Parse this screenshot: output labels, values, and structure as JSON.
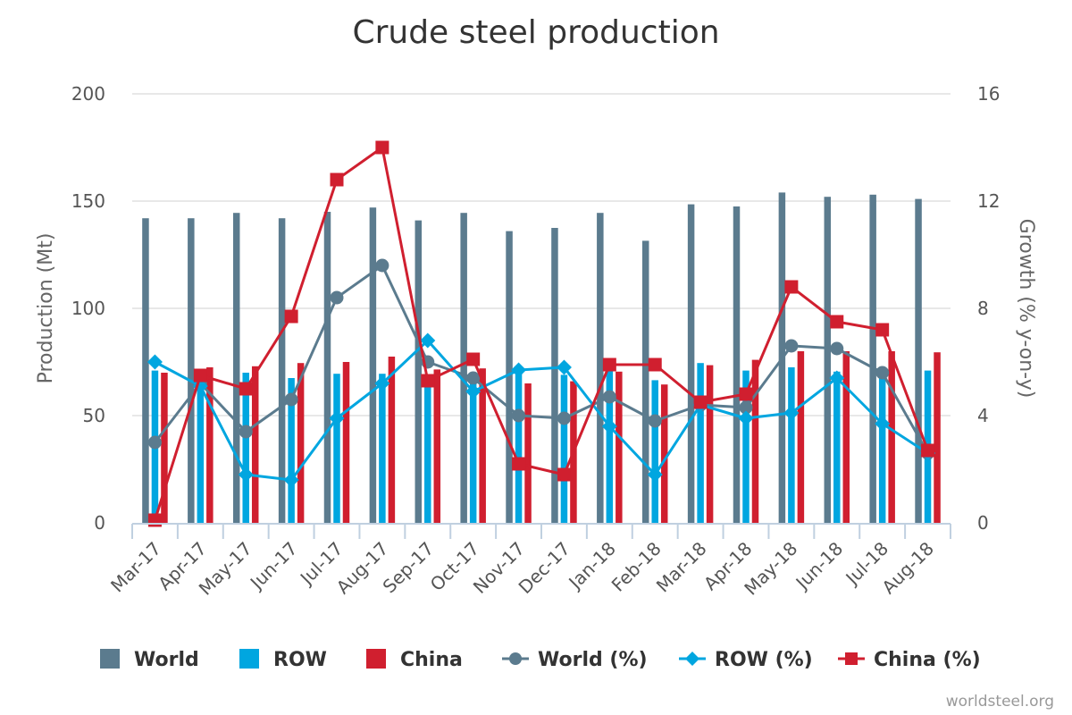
{
  "chart_data": {
    "type": "bar",
    "title": "Crude steel production",
    "categories": [
      "Mar-17",
      "Apr-17",
      "May-17",
      "Jun-17",
      "Jul-17",
      "Aug-17",
      "Sep-17",
      "Oct-17",
      "Nov-17",
      "Dec-17",
      "Jan-18",
      "Feb-18",
      "Mar-18",
      "Apr-18",
      "May-18",
      "Jun-18",
      "Jul-18",
      "Aug-18"
    ],
    "y_left": {
      "label": "Production (Mt)",
      "ylim": [
        0,
        200
      ],
      "ticks": [
        0,
        50,
        100,
        150,
        200
      ]
    },
    "y_right": {
      "label": "Growth (% y-on-y)",
      "ylim": [
        0,
        16
      ],
      "ticks": [
        0,
        4,
        8,
        12,
        16
      ]
    },
    "grid": true,
    "legend_position": "bottom",
    "series": [
      {
        "name": "World",
        "kind": "bar",
        "axis": "left",
        "color": "#5b7b8e",
        "values": [
          142,
          142,
          144.5,
          142,
          145,
          147,
          141,
          144.5,
          136,
          137.5,
          144.5,
          131.5,
          148.5,
          147.5,
          154,
          152,
          153,
          151
        ]
      },
      {
        "name": "ROW",
        "kind": "bar",
        "axis": "left",
        "color": "#00a6e0",
        "values": [
          71,
          67,
          70,
          67.5,
          69.5,
          69.5,
          66,
          69.5,
          73,
          69,
          72,
          66.5,
          74.5,
          71,
          72.5,
          70.5,
          68,
          71
        ]
      },
      {
        "name": "China",
        "kind": "bar",
        "axis": "left",
        "color": "#d01f2f",
        "values": [
          70,
          72.5,
          73,
          74.5,
          75,
          77.5,
          71.5,
          72,
          65,
          66,
          70.5,
          64.5,
          73.5,
          76,
          80,
          80,
          80,
          79.5
        ]
      },
      {
        "name": "World (%)",
        "kind": "line",
        "marker": "circle",
        "axis": "right",
        "color": "#5b7b8e",
        "values": [
          3.0,
          5.2,
          3.4,
          4.6,
          8.4,
          9.6,
          6.0,
          5.4,
          4.0,
          3.9,
          4.7,
          3.8,
          4.4,
          4.3,
          6.6,
          6.5,
          5.6,
          2.6
        ]
      },
      {
        "name": "ROW (%)",
        "kind": "line",
        "marker": "diamond",
        "axis": "right",
        "color": "#00a6e0",
        "values": [
          6.0,
          5.1,
          1.8,
          1.6,
          3.9,
          5.2,
          6.8,
          4.9,
          5.7,
          5.8,
          3.6,
          1.8,
          4.4,
          3.9,
          4.1,
          5.4,
          3.7,
          2.6
        ]
      },
      {
        "name": "China (%)",
        "kind": "line",
        "marker": "square",
        "axis": "right",
        "color": "#d01f2f",
        "values": [
          0.1,
          5.5,
          5.0,
          7.7,
          12.8,
          14.0,
          5.3,
          6.1,
          2.2,
          1.8,
          5.9,
          5.9,
          4.5,
          4.8,
          8.8,
          7.5,
          7.2,
          2.7
        ]
      }
    ]
  },
  "credit": "worldsteel.org"
}
